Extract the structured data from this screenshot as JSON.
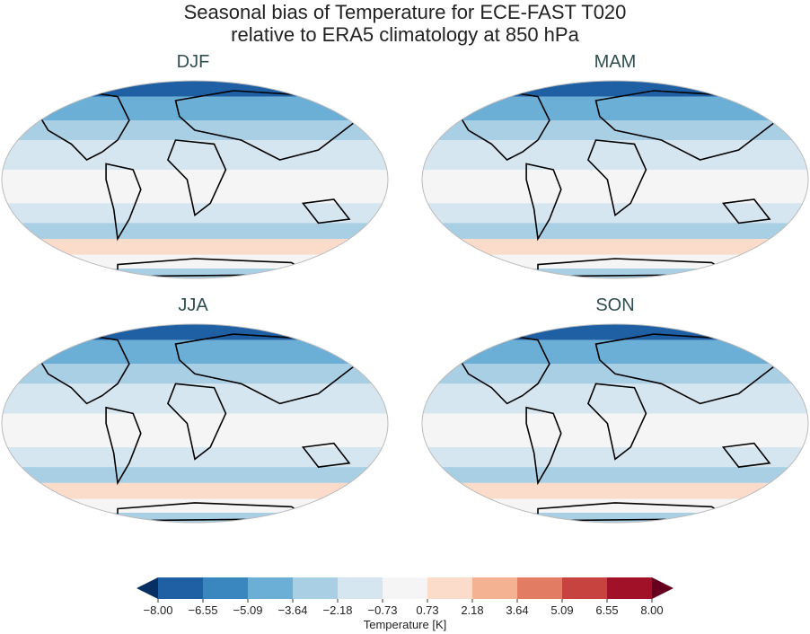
{
  "title": [
    "Seasonal bias of Temperature for ECE-FAST T020",
    "relative to ERA5 climatology at 850 hPa"
  ],
  "panels": [
    {
      "label": "DJF"
    },
    {
      "label": "MAM"
    },
    {
      "label": "JJA"
    },
    {
      "label": "SON"
    }
  ],
  "colorbar": {
    "label": "Temperature [K]",
    "ticks": [
      "−8.00",
      "−6.55",
      "−5.09",
      "−3.64",
      "−2.18",
      "−0.73",
      "0.73",
      "2.18",
      "3.64",
      "5.09",
      "6.55",
      "8.00"
    ],
    "colors": [
      "#053061",
      "#1f5fa3",
      "#3a87c0",
      "#6baed6",
      "#a9cfe5",
      "#d6e6f0",
      "#f5f5f5",
      "#fbdbc9",
      "#f4b293",
      "#e27c63",
      "#c7433f",
      "#a11228",
      "#67001f"
    ],
    "extend": "both"
  }
}
